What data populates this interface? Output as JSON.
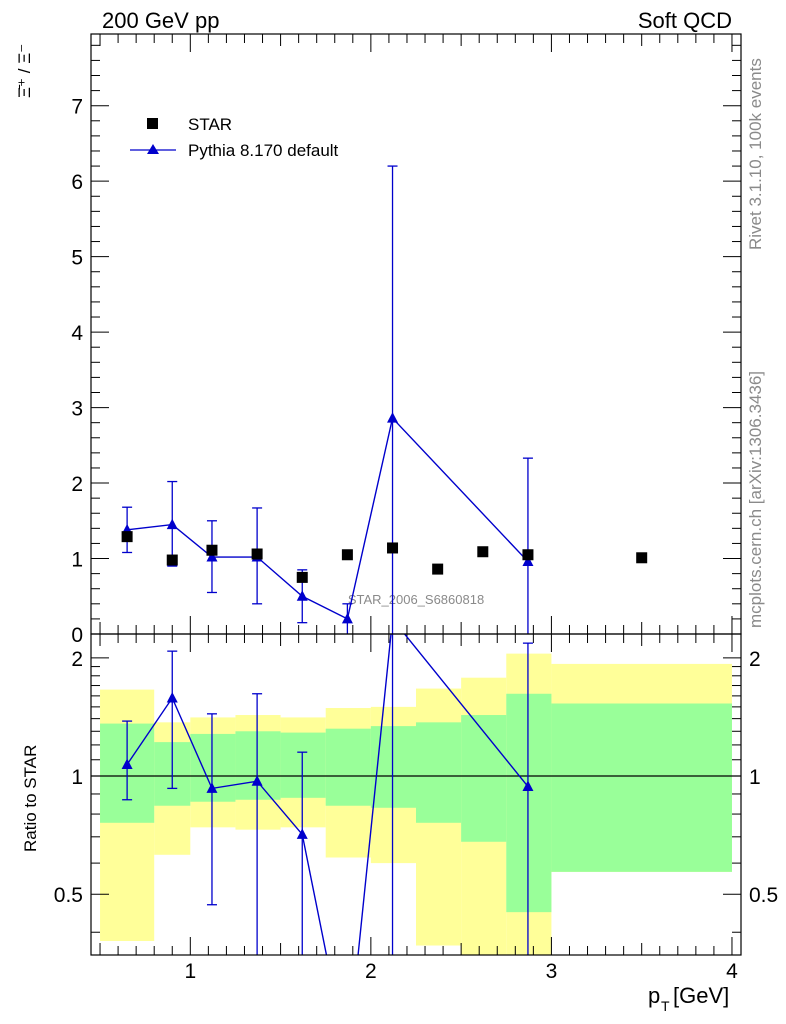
{
  "header": {
    "left": "200 GeV pp",
    "right": "Soft QCD"
  },
  "side_text": {
    "rivet": "Rivet 3.1.10,  100k events",
    "mcplots": "mcplots.cern.ch [arXiv:1306.3436]"
  },
  "chart_data": [
    {
      "type": "scatter",
      "panel": "main",
      "ylabel": "Ξ̄⁺ / Ξ⁻",
      "xlabel": "",
      "xlim": [
        0.45,
        4.05
      ],
      "ylim": [
        0,
        7.95
      ],
      "yticks": [
        0,
        1,
        2,
        3,
        4,
        5,
        6,
        7
      ],
      "watermark": "STAR_2006_S6860818",
      "series": [
        {
          "name": "STAR",
          "color": "#000000",
          "x": [
            0.65,
            0.9,
            1.12,
            1.37,
            1.62,
            1.87,
            2.12,
            2.37,
            2.62,
            2.87,
            3.5
          ],
          "y": [
            1.29,
            0.98,
            1.11,
            1.06,
            0.75,
            1.05,
            1.14,
            0.86,
            1.09,
            1.05,
            1.01
          ]
        },
        {
          "name": "Pythia 8.170 default",
          "color": "#0000cc",
          "x": [
            0.65,
            0.9,
            1.12,
            1.37,
            1.62,
            1.87,
            2.12,
            2.87
          ],
          "y": [
            1.38,
            1.45,
            1.02,
            1.02,
            0.5,
            0.2,
            2.86,
            0.96
          ],
          "yerr_low": [
            1.08,
            0.9,
            0.55,
            0.4,
            0.15,
            0.0,
            0.0,
            0.0
          ],
          "yerr_high": [
            1.68,
            2.02,
            1.5,
            1.67,
            0.85,
            0.4,
            6.2,
            2.33
          ]
        }
      ]
    },
    {
      "type": "line",
      "panel": "ratio",
      "ylabel": "Ratio to STAR",
      "xlabel": "p_T [GeV]",
      "xlabel_main": "p",
      "xlabel_sub": "T",
      "xlabel_unit": " [GeV]",
      "xlim": [
        0.45,
        4.05
      ],
      "ylim": [
        0.35,
        2.3
      ],
      "yticks": [
        0.5,
        1,
        2
      ],
      "ytick_labels": [
        "0.5",
        "1",
        "2"
      ],
      "xticks": [
        1,
        2,
        3,
        4
      ],
      "xtick_labels": [
        "1",
        "2",
        "3",
        "4"
      ],
      "bands": {
        "bin_edges": [
          0.5,
          0.8,
          1.0,
          1.25,
          1.5,
          1.75,
          2.0,
          2.25,
          2.5,
          2.75,
          3.0,
          4.0
        ],
        "green_low": [
          0.76,
          0.84,
          0.86,
          0.87,
          0.88,
          0.84,
          0.83,
          0.76,
          0.68,
          0.45,
          0.57
        ],
        "green_high": [
          1.36,
          1.22,
          1.28,
          1.3,
          1.29,
          1.32,
          1.34,
          1.37,
          1.43,
          1.62,
          1.53
        ],
        "yellow_low": [
          0.38,
          0.63,
          0.74,
          0.73,
          0.74,
          0.62,
          0.6,
          0.37,
          0.35,
          0.35,
          0.57
        ],
        "yellow_high": [
          1.66,
          1.37,
          1.41,
          1.43,
          1.41,
          1.49,
          1.5,
          1.67,
          1.78,
          2.05,
          1.93
        ]
      },
      "series": [
        {
          "name": "Pythia 8.170 default / STAR",
          "color": "#0000cc",
          "x": [
            0.65,
            0.9,
            1.12,
            1.37,
            1.62,
            1.87,
            2.12,
            2.87
          ],
          "y": [
            1.07,
            1.58,
            0.93,
            0.97,
            0.71,
            0.19,
            2.51,
            0.94
          ],
          "yerr_low": [
            0.87,
            0.93,
            0.47,
            0.2,
            0.2,
            0.0,
            0.0,
            0.0
          ],
          "yerr_high": [
            1.38,
            2.08,
            1.44,
            1.62,
            1.15,
            0.0,
            2.6,
            2.18
          ]
        }
      ]
    }
  ]
}
